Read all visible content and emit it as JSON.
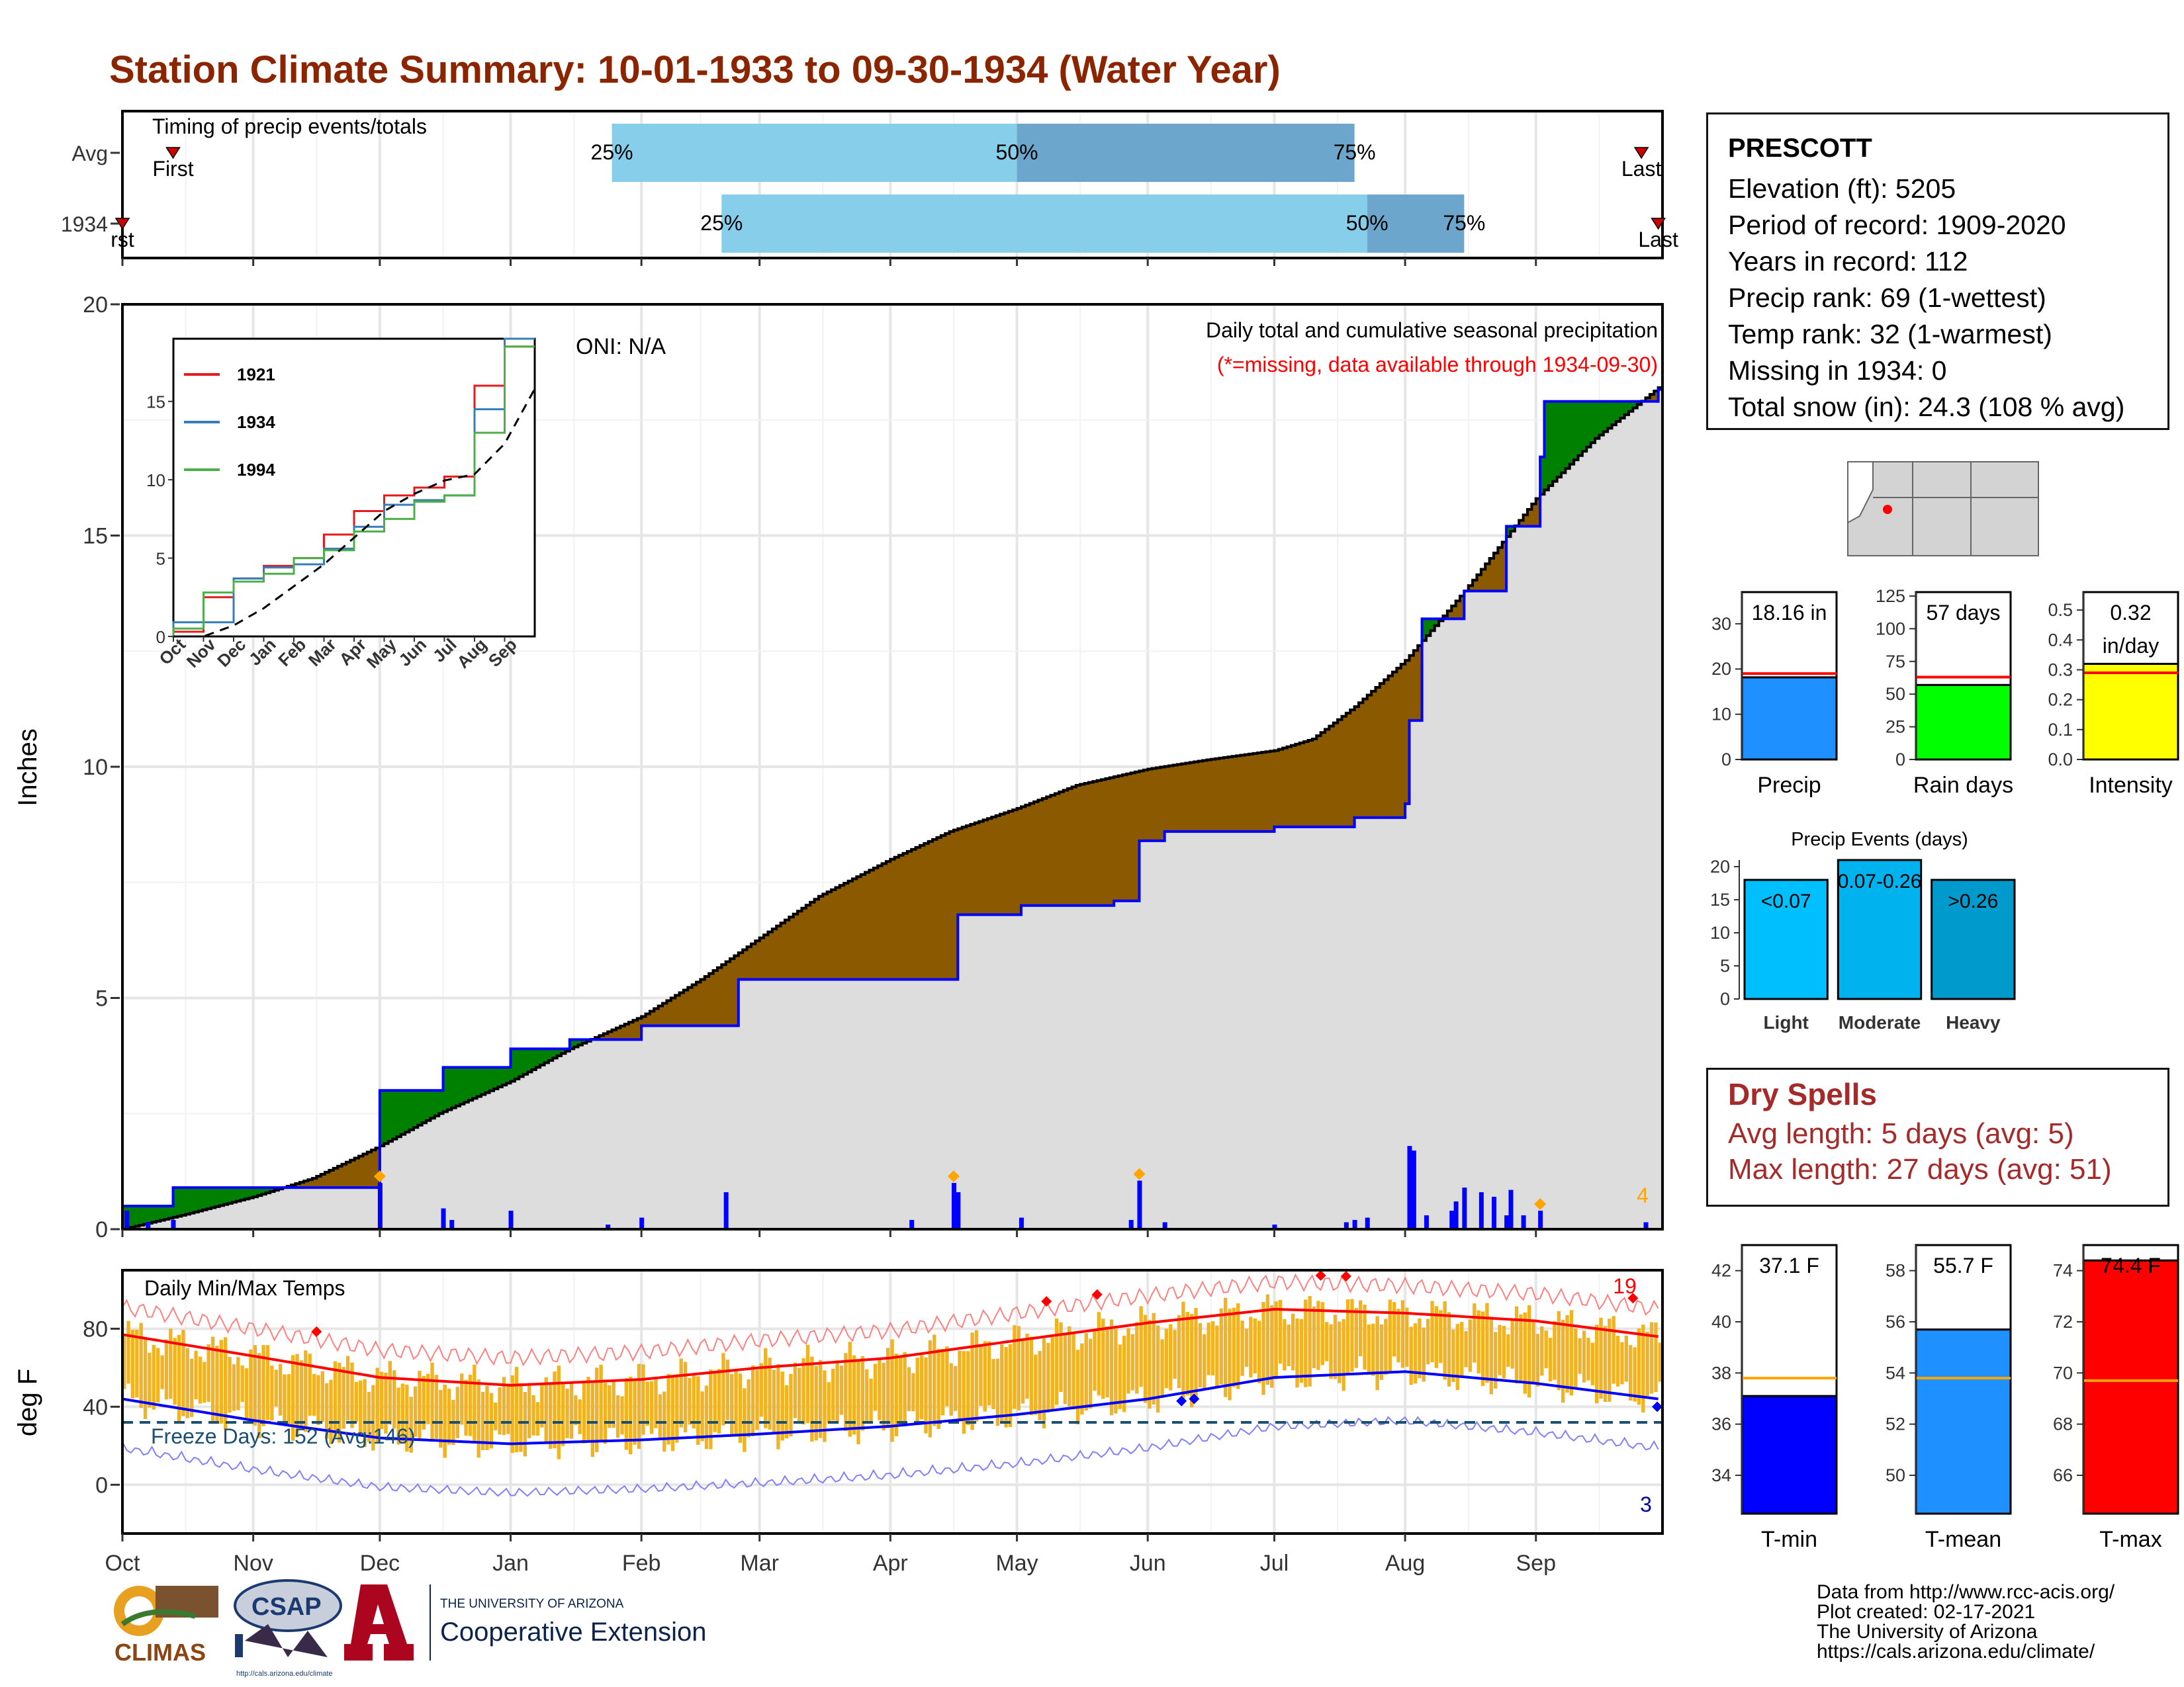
{
  "title": "Station Climate Summary: 10-01-1933 to 09-30-1934 (Water Year)",
  "station": {
    "name": "PRESCOTT",
    "lines": [
      "Elevation (ft): 5205",
      "Period of record: 1909-2020",
      "Years in record: 112",
      "Precip rank: 69 (1-wettest)",
      "Temp rank: 32 (1-warmest)",
      "Missing in 1934: 0",
      "Total snow (in): 24.3 (108 % avg)"
    ]
  },
  "dry_spells": {
    "title": "Dry Spells",
    "avg_line": "Avg length: 5 days (avg: 5)",
    "max_line": "Max length: 27 days (avg: 51)"
  },
  "footer": {
    "lines": [
      "Data from http://www.rcc-acis.org/",
      "Plot created: 02-17-2021",
      "The University of Arizona",
      "https://cals.arizona.edu/climate/"
    ]
  },
  "logos": {
    "climas": "CLIMAS",
    "csap": "CSAP",
    "csap_url": "http://cals.arizona.edu/climate",
    "ua_small": "THE UNIVERSITY OF ARIZONA",
    "ua_big": "Cooperative Extension"
  },
  "colors": {
    "title": "#8B2500",
    "above_avg": "#008000",
    "below_avg": "#8B5A00",
    "cum_fill": "#DDDDDD",
    "cum_line": "#0000FF",
    "bars": "#0000FF",
    "temp_bars": "#F0B323",
    "light_blue": "#87CEEB",
    "mid_blue": "#6CA6CD",
    "red": "#FF0000",
    "dry": "#A52A2A"
  },
  "chart_data": [
    {
      "type": "bar",
      "name": "timing",
      "title": "Timing of precip events/totals",
      "categories": [
        "Avg",
        "1934"
      ],
      "first_label": "First",
      "last_label": "Last",
      "rows": [
        {
          "label": "Avg",
          "first": "1933-10-13",
          "p25": "1934-01-25",
          "p50": "1934-05-01",
          "p75": "1934-07-20",
          "last": "1934-09-26",
          "first_text": "First",
          "last_text": "Last"
        },
        {
          "label": "1934",
          "first": "1933-10-01",
          "p25": "1934-02-20",
          "p50": "1934-07-23",
          "p75": "1934-08-15",
          "last": "1934-09-30",
          "first_text": "rst",
          "last_text": "Last"
        }
      ],
      "pct_labels": [
        "25%",
        "50%",
        "75%"
      ]
    },
    {
      "type": "area",
      "name": "cumulative_precip",
      "ylabel": "Inches",
      "ylim": [
        0,
        20
      ],
      "yticks": [
        0,
        5,
        10,
        15,
        20
      ],
      "annotation1": "Daily total and cumulative seasonal precipitation",
      "annotation2": "(*=missing, data available through 1934-09-30)",
      "oni": "ONI: N/A",
      "snow_count": "4",
      "avg_cum": [
        [
          "1933-10-01",
          0.0
        ],
        [
          "1933-10-15",
          0.3
        ],
        [
          "1933-11-01",
          0.7
        ],
        [
          "1933-11-15",
          1.1
        ],
        [
          "1933-12-01",
          1.8
        ],
        [
          "1933-12-15",
          2.5
        ],
        [
          "1934-01-01",
          3.2
        ],
        [
          "1934-01-15",
          3.9
        ],
        [
          "1934-02-01",
          4.6
        ],
        [
          "1934-02-15",
          5.4
        ],
        [
          "1934-03-01",
          6.3
        ],
        [
          "1934-03-15",
          7.2
        ],
        [
          "1934-04-01",
          8.0
        ],
        [
          "1934-04-15",
          8.6
        ],
        [
          "1934-05-01",
          9.1
        ],
        [
          "1934-05-15",
          9.6
        ],
        [
          "1934-06-01",
          9.95
        ],
        [
          "1934-06-15",
          10.15
        ],
        [
          "1934-07-01",
          10.35
        ],
        [
          "1934-07-10",
          10.6
        ],
        [
          "1934-07-20",
          11.3
        ],
        [
          "1934-08-01",
          12.3
        ],
        [
          "1934-08-15",
          13.8
        ],
        [
          "1934-09-01",
          15.8
        ],
        [
          "1934-09-15",
          17.1
        ],
        [
          "1934-09-30",
          18.2
        ]
      ],
      "obs_cum": [
        [
          "1933-10-01",
          0.5
        ],
        [
          "1933-10-13",
          0.9
        ],
        [
          "1933-11-30",
          0.9
        ],
        [
          "1933-12-01",
          3.0
        ],
        [
          "1933-12-15",
          3.0
        ],
        [
          "1933-12-16",
          3.5
        ],
        [
          "1934-01-01",
          3.9
        ],
        [
          "1934-01-15",
          4.1
        ],
        [
          "1934-02-01",
          4.4
        ],
        [
          "1934-02-23",
          4.4
        ],
        [
          "1934-02-24",
          5.4
        ],
        [
          "1934-04-16",
          5.4
        ],
        [
          "1934-04-17",
          6.8
        ],
        [
          "1934-05-02",
          7.0
        ],
        [
          "1934-05-24",
          7.1
        ],
        [
          "1934-05-29",
          7.1
        ],
        [
          "1934-05-30",
          8.4
        ],
        [
          "1934-06-05",
          8.6
        ],
        [
          "1934-06-25",
          8.6
        ],
        [
          "1934-07-01",
          8.7
        ],
        [
          "1934-07-20",
          8.9
        ],
        [
          "1934-08-01",
          9.2
        ],
        [
          "1934-08-02",
          11.0
        ],
        [
          "1934-08-05",
          13.2
        ],
        [
          "1934-08-15",
          13.8
        ],
        [
          "1934-08-25",
          15.2
        ],
        [
          "1934-09-02",
          16.7
        ],
        [
          "1934-09-03",
          17.9
        ],
        [
          "1934-09-30",
          18.16
        ]
      ],
      "daily_precip": [
        [
          "1933-10-02",
          0.4
        ],
        [
          "1933-10-07",
          0.15
        ],
        [
          "1933-10-13",
          0.2
        ],
        [
          "1933-12-01",
          1.0
        ],
        [
          "1933-12-16",
          0.45
        ],
        [
          "1933-12-18",
          0.2
        ],
        [
          "1934-01-01",
          0.4
        ],
        [
          "1934-01-24",
          0.1
        ],
        [
          "1934-02-01",
          0.25
        ],
        [
          "1934-02-21",
          0.8
        ],
        [
          "1934-04-06",
          0.2
        ],
        [
          "1934-04-16",
          1.0
        ],
        [
          "1934-04-17",
          0.8
        ],
        [
          "1934-05-02",
          0.25
        ],
        [
          "1934-05-28",
          0.2
        ],
        [
          "1934-05-30",
          1.05
        ],
        [
          "1934-06-05",
          0.15
        ],
        [
          "1934-07-01",
          0.1
        ],
        [
          "1934-07-18",
          0.15
        ],
        [
          "1934-07-20",
          0.2
        ],
        [
          "1934-07-23",
          0.25
        ],
        [
          "1934-08-02",
          1.8
        ],
        [
          "1934-08-03",
          1.7
        ],
        [
          "1934-08-06",
          0.3
        ],
        [
          "1934-08-12",
          0.4
        ],
        [
          "1934-08-13",
          0.6
        ],
        [
          "1934-08-15",
          0.9
        ],
        [
          "1934-08-19",
          0.8
        ],
        [
          "1934-08-22",
          0.7
        ],
        [
          "1934-08-25",
          0.3
        ],
        [
          "1934-08-26",
          0.85
        ],
        [
          "1934-08-29",
          0.3
        ],
        [
          "1934-09-02",
          0.4
        ],
        [
          "1934-09-27",
          0.15
        ]
      ],
      "inset": {
        "type": "line",
        "ylim": [
          0,
          19
        ],
        "yticks": [
          0,
          5,
          10,
          15
        ],
        "month_labels": [
          "Oct",
          "Nov",
          "Dec",
          "Jan",
          "Feb",
          "Mar",
          "Apr",
          "May",
          "Jun",
          "Jul",
          "Aug",
          "Sep"
        ],
        "series": [
          {
            "name": "1921",
            "color": "#E41A1C",
            "values": [
              0.3,
              2.5,
              3.7,
              4.5,
              5.0,
              6.5,
              8.0,
              9.0,
              9.5,
              10.2,
              16.0,
              18.5
            ]
          },
          {
            "name": "1934",
            "color": "#377EB8",
            "values": [
              0.9,
              0.9,
              3.7,
              4.4,
              4.6,
              5.6,
              7.0,
              8.4,
              8.7,
              9.0,
              14.5,
              19.0
            ]
          },
          {
            "name": "1994",
            "color": "#4DAF4A",
            "values": [
              0.5,
              2.8,
              3.5,
              4.0,
              5.0,
              5.5,
              6.7,
              7.5,
              8.6,
              9.0,
              13.0,
              18.5
            ]
          }
        ],
        "avg_values": [
          0.0,
          0.7,
          1.8,
          3.2,
          4.6,
          6.3,
          8.0,
          9.1,
          9.95,
          10.35,
          12.3,
          15.8
        ]
      }
    },
    {
      "type": "bar",
      "name": "summary_precip",
      "categories": [
        "Precip",
        "Rain days",
        "Intensity"
      ],
      "panels": [
        {
          "label": "Precip",
          "value_text": "18.16 in",
          "value": 18.16,
          "avg": 19.0,
          "ylim": [
            0,
            37
          ],
          "yticks": [
            0,
            10,
            20,
            30
          ],
          "color": "#1E90FF"
        },
        {
          "label": "Rain days",
          "value_text": "57 days",
          "value": 57,
          "avg": 63,
          "ylim": [
            0,
            128
          ],
          "yticks": [
            0,
            25,
            50,
            75,
            100,
            125
          ],
          "color": "#00FF00"
        },
        {
          "label": "Intensity",
          "value_text": "0.32\nin/day",
          "value": 0.32,
          "avg": 0.29,
          "ylim": [
            0,
            0.56
          ],
          "yticks": [
            0.0,
            0.1,
            0.2,
            0.3,
            0.4,
            0.5
          ],
          "color": "#FFFF00"
        }
      ]
    },
    {
      "type": "bar",
      "name": "precip_events",
      "title": "Precip Events (days)",
      "categories": [
        "Light",
        "Moderate",
        "Heavy"
      ],
      "bin_labels": [
        "<0.07",
        "0.07-0.26",
        ">0.26"
      ],
      "values": [
        18,
        21,
        18
      ],
      "ylim": [
        0,
        21
      ],
      "yticks": [
        0,
        5,
        10,
        15,
        20
      ],
      "colors": [
        "#00BFFF",
        "#00B2EE",
        "#009ACD"
      ]
    },
    {
      "type": "bar",
      "name": "daily_temps",
      "title": "Daily Min/Max Temps",
      "ylabel": "deg F",
      "ylim": [
        -25,
        110
      ],
      "yticks": [
        0,
        40,
        80
      ],
      "freeze_text": "Freeze Days: 152 (Avg:146)",
      "freeze_line": 32,
      "record_hi_count": "19",
      "record_lo_count": "3",
      "x_labels": [
        "Oct",
        "Nov",
        "Dec",
        "Jan",
        "Feb",
        "Mar",
        "Apr",
        "May",
        "Jun",
        "Jul",
        "Aug",
        "Sep"
      ],
      "avg_max": [
        [
          "1933-10-01",
          77
        ],
        [
          "1933-11-01",
          66
        ],
        [
          "1933-12-01",
          55
        ],
        [
          "1934-01-01",
          51
        ],
        [
          "1934-02-01",
          54
        ],
        [
          "1934-03-01",
          60
        ],
        [
          "1934-04-01",
          65
        ],
        [
          "1934-05-01",
          74
        ],
        [
          "1934-06-01",
          83
        ],
        [
          "1934-07-01",
          90
        ],
        [
          "1934-08-01",
          88
        ],
        [
          "1934-09-01",
          84
        ],
        [
          "1934-09-30",
          76
        ]
      ],
      "avg_min": [
        [
          "1933-10-01",
          44
        ],
        [
          "1933-11-01",
          33
        ],
        [
          "1933-12-01",
          24
        ],
        [
          "1934-01-01",
          21
        ],
        [
          "1934-02-01",
          23
        ],
        [
          "1934-03-01",
          26
        ],
        [
          "1934-04-01",
          30
        ],
        [
          "1934-05-01",
          36
        ],
        [
          "1934-06-01",
          44
        ],
        [
          "1934-07-01",
          55
        ],
        [
          "1934-08-01",
          58
        ],
        [
          "1934-09-01",
          52
        ],
        [
          "1934-09-30",
          44
        ]
      ]
    },
    {
      "type": "bar",
      "name": "summary_temps",
      "categories": [
        "T-min",
        "T-mean",
        "T-max"
      ],
      "panels": [
        {
          "label": "T-min",
          "value_text": "37.1 F",
          "value": 37.1,
          "avg": 37.8,
          "ylim": [
            32.5,
            43
          ],
          "yticks": [
            34,
            36,
            38,
            40,
            42
          ],
          "color": "#0000FF"
        },
        {
          "label": "T-mean",
          "value_text": "55.7 F",
          "value": 55.7,
          "avg": 53.8,
          "ylim": [
            48.5,
            59
          ],
          "yticks": [
            50,
            52,
            54,
            56,
            58
          ],
          "color": "#1E90FF"
        },
        {
          "label": "T-max",
          "value_text": "74.4 F",
          "value": 74.4,
          "avg": 69.7,
          "ylim": [
            64.5,
            75
          ],
          "yticks": [
            66,
            68,
            70,
            72,
            74
          ],
          "color": "#FF0000"
        }
      ]
    }
  ]
}
